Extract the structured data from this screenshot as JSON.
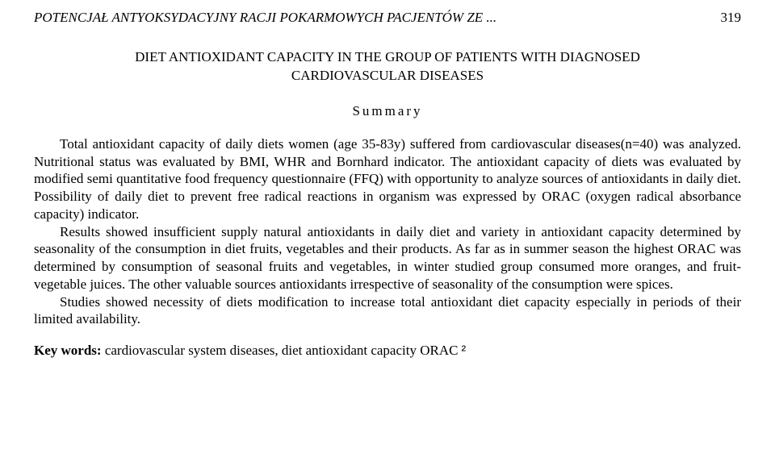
{
  "header": {
    "running_title": "POTENCJAŁ ANTYOKSYDACYJNY RACJI POKARMOWYCH PACJENTÓW ZE ...",
    "page_number": "319"
  },
  "title_line1": "DIET ANTIOXIDANT CAPACITY IN THE GROUP OF PATIENTS WITH DIAGNOSED",
  "title_line2": "CARDIOVASCULAR DISEASES",
  "summary_label": "Summary",
  "paragraphs": {
    "p1": "Total antioxidant capacity of daily diets women (age 35-83y) suffered from cardiovascular diseases(n=40) was analyzed. Nutritional status was evaluated by BMI, WHR and Bornhard indicator. The antioxidant capacity of diets was evaluated by modified semi quantitative food frequency questionnaire (FFQ) with opportunity to analyze sources of antioxidants in daily diet. Possibility of daily diet to prevent free radical reactions in organism was expressed by ORAC (oxygen radical absorbance capacity) indicator.",
    "p2": "Results showed insufficient supply natural antioxidants in daily diet and variety in antioxidant capacity determined by seasonality of the consumption in diet fruits, vegetables and their products. As far as in summer season the highest ORAC was determined by consumption of seasonal fruits and vegetables, in winter studied group consumed more oranges, and fruit-vegetable juices. The other valuable sources antioxidants irrespective of seasonality of the consumption were spices.",
    "p3": "Studies showed necessity of diets modification to increase total antioxidant diet capacity especially in periods of their limited availability."
  },
  "keywords": {
    "label": "Key words:",
    "text": "cardiovascular system diseases, diet antioxidant capacity ORAC"
  },
  "end_mark": "²"
}
